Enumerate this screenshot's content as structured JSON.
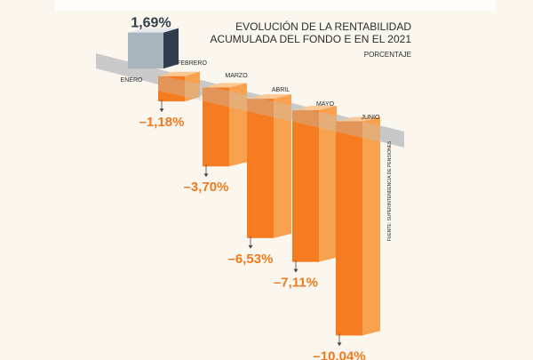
{
  "chart_data": {
    "type": "bar",
    "title_lines": [
      "EVOLUCIÓN DE LA RENTABILIDAD",
      "ACUMULADA DEL FONDO E EN EL 2021"
    ],
    "subtitle": "PORCENTAJE",
    "source": "FUENTE: SUPERINTENDENCIA DE PENSIONES",
    "categories": [
      "ENERO",
      "FEBRERO",
      "MARZO",
      "ABRIL",
      "MAYO",
      "JUNIO"
    ],
    "values": [
      1.69,
      -1.18,
      -3.7,
      -6.53,
      -7.11,
      -10.04
    ],
    "value_labels": [
      "1,69%",
      "–1,18%",
      "–3,70%",
      "–6,53%",
      "–7,11%",
      "–10,04%"
    ],
    "colors": {
      "positive_front": "#a9b5bd",
      "positive_side": "#2f3e4c",
      "positive_top": "#e5e9ec",
      "negative_front": "#f57c20",
      "negative_side": "#f8a14e",
      "negative_top": "#fcc894",
      "label_negative": "#ef7a1e",
      "label_positive": "#2f3e4c",
      "band": "#c4c6c6",
      "shadow": "#aa8a70",
      "title": "#2c2c2c"
    }
  }
}
